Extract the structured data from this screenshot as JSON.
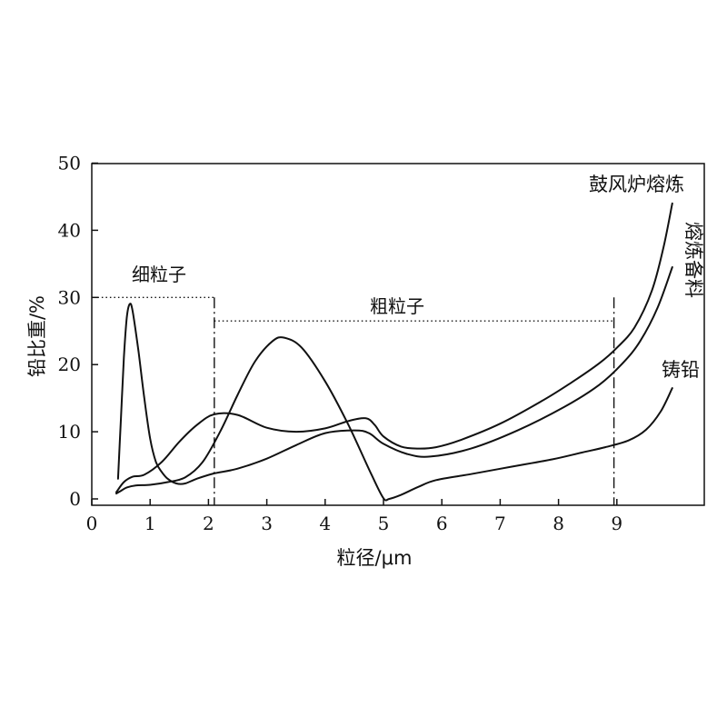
{
  "chart_data": {
    "type": "line",
    "title": "",
    "xlabel": "粒径/μm",
    "ylabel": "铅比重/%",
    "xlim": [
      0,
      10.5
    ],
    "ylim": [
      0,
      50
    ],
    "xticks": [
      0,
      1,
      2,
      3,
      4,
      5,
      6,
      7,
      8,
      9
    ],
    "yticks": [
      0,
      10,
      20,
      30,
      40,
      50
    ],
    "grid": false,
    "series": [
      {
        "name": "鼓风炉熔炼",
        "x": [
          0.42,
          0.55,
          0.7,
          0.9,
          1.2,
          1.5,
          1.8,
          2.1,
          2.5,
          3.0,
          3.5,
          4.0,
          4.4,
          4.7,
          4.85,
          5.0,
          5.3,
          5.6,
          5.9,
          6.3,
          7.0,
          7.7,
          8.2,
          8.7,
          9.0,
          9.3,
          9.6,
          9.8,
          9.95
        ],
        "y": [
          1.0,
          2.5,
          3.3,
          3.6,
          5.5,
          8.5,
          11.0,
          12.6,
          12.5,
          10.6,
          10.0,
          10.5,
          11.6,
          12.0,
          11.0,
          9.3,
          7.8,
          7.5,
          7.7,
          8.7,
          11.2,
          14.5,
          17.2,
          20.2,
          22.5,
          25.5,
          31.0,
          37.5,
          44.0
        ]
      },
      {
        "name": "熔炼备料",
        "x": [
          0.42,
          0.5,
          0.6,
          0.75,
          1.0,
          1.3,
          1.6,
          1.9,
          2.2,
          2.5,
          2.8,
          3.1,
          3.3,
          3.6,
          4.0,
          4.4,
          4.8,
          5.0,
          5.1,
          5.3,
          5.6,
          5.9,
          6.5,
          7.2,
          7.9,
          8.4,
          8.8,
          9.2,
          9.5,
          9.75,
          9.95
        ],
        "y": [
          0.8,
          1.2,
          1.7,
          2.0,
          2.1,
          2.5,
          3.2,
          5.5,
          10.0,
          15.5,
          20.5,
          23.5,
          24.0,
          22.5,
          17.5,
          11.0,
          3.5,
          0.1,
          0.0,
          0.6,
          1.8,
          2.8,
          3.7,
          4.8,
          5.9,
          6.9,
          7.7,
          8.7,
          10.3,
          13.0,
          16.5
        ]
      },
      {
        "name": "铸铅",
        "x": [
          0.45,
          0.5,
          0.55,
          0.6,
          0.65,
          0.7,
          0.8,
          0.9,
          1.0,
          1.1,
          1.2,
          1.3,
          1.45,
          1.6,
          1.8,
          2.1,
          2.5,
          3.0,
          3.5,
          4.0,
          4.5,
          4.75,
          5.0,
          5.4,
          5.8,
          6.5,
          7.3,
          8.1,
          8.7,
          9.1,
          9.4,
          9.7,
          9.95
        ],
        "y": [
          3.0,
          12.0,
          21.0,
          27.0,
          29.0,
          28.0,
          22.0,
          15.0,
          9.0,
          5.5,
          4.0,
          3.0,
          2.3,
          2.3,
          3.0,
          3.8,
          4.5,
          6.0,
          8.0,
          9.8,
          10.2,
          9.8,
          8.2,
          6.7,
          6.3,
          7.5,
          10.2,
          13.7,
          17.0,
          20.2,
          23.5,
          28.5,
          34.5
        ]
      }
    ],
    "regions": [
      {
        "label": "细粒子",
        "x_from": 0.1,
        "x_to": 2.1,
        "y": 30
      },
      {
        "label": "粗粒子",
        "x_from": 2.1,
        "x_to": 8.95,
        "y": 26.5
      }
    ],
    "region_boundaries": [
      2.1,
      8.95
    ]
  }
}
